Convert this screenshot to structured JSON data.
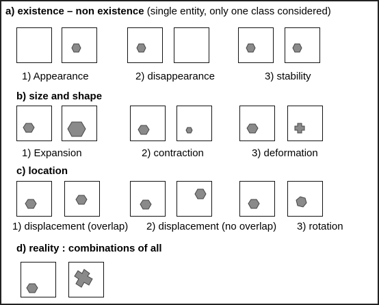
{
  "sections": [
    {
      "id": "a",
      "heading_bold": "a) existence – non existence",
      "heading_normal": " (single entity, only one class considered)",
      "captions": [
        "1) Appearance",
        "2) disappearance",
        "3) stability"
      ]
    },
    {
      "id": "b",
      "heading_bold": "b) size and shape",
      "heading_normal": "",
      "captions": [
        "1) Expansion",
        "2) contraction",
        "3) deformation"
      ]
    },
    {
      "id": "c",
      "heading_bold": "c) location",
      "heading_normal": "",
      "captions": [
        "1) displacement (overlap)",
        "2) displacement (no overlap)",
        "3) rotation"
      ]
    },
    {
      "id": "d",
      "heading_bold": "d) reality : combinations of all",
      "heading_normal": "",
      "captions": []
    }
  ],
  "colors": {
    "shape_fill": "#8a8a8a",
    "shape_stroke": "#444444",
    "border": "#111111"
  }
}
